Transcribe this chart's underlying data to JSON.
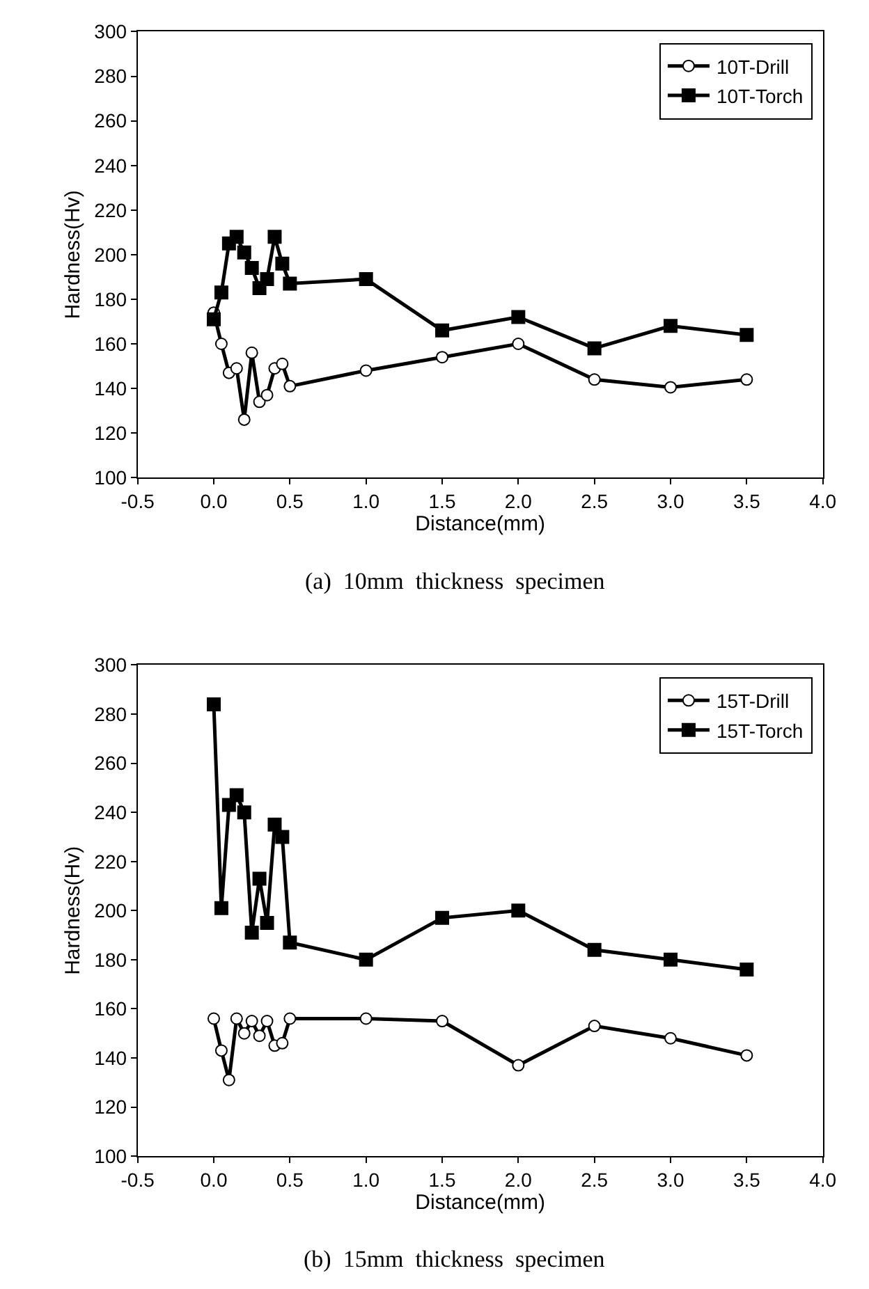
{
  "chart_data": [
    {
      "type": "line",
      "xlabel": "Distance(mm)",
      "ylabel": "Hardness(Hv)",
      "annotations": [
        "(a)  10mm  thickness  specimen"
      ],
      "xlim": [
        -0.5,
        4.0
      ],
      "xticks": [
        {
          "value": -0.5,
          "label": "-0.5"
        },
        {
          "value": 0,
          "label": "0.0"
        },
        0.5,
        {
          "value": 1,
          "label": "1.0"
        },
        1.5,
        {
          "value": 2,
          "label": "2.0"
        },
        2.5,
        {
          "value": 3,
          "label": "3.0"
        },
        3.5,
        {
          "value": 4,
          "label": "4.0"
        }
      ],
      "ylim": [
        100,
        300
      ],
      "yticks": [
        100,
        120,
        140,
        160,
        180,
        200,
        220,
        240,
        260,
        280,
        300
      ],
      "legend": "top right",
      "line_style": "solid",
      "x": [
        0,
        0.05,
        0.1,
        0.15,
        0.2,
        0.25,
        0.3,
        0.35,
        0.4,
        0.45,
        0.5,
        1.0,
        1.5,
        2.0,
        2.5,
        3.0,
        3.5
      ],
      "series": [
        {
          "name": "10T-Drill",
          "color": "#000000",
          "marker": "circle",
          "values": [
            174,
            160,
            147,
            149,
            126,
            156,
            134,
            137,
            149,
            151,
            141,
            148,
            154,
            160,
            144,
            140.5,
            144
          ]
        },
        {
          "name": "10T-Torch",
          "color": "#000000",
          "marker": "square",
          "values": [
            171,
            183,
            205,
            208,
            201,
            194,
            185,
            189,
            208,
            196,
            187,
            189,
            166,
            172,
            158,
            168,
            164
          ]
        }
      ]
    },
    {
      "type": "line",
      "xlabel": "Distance(mm)",
      "ylabel": "Hardness(Hv)",
      "annotations": [
        "(b)  15mm  thickness  specimen"
      ],
      "xlim": [
        -0.5,
        4.0
      ],
      "xticks": [
        {
          "value": -0.5,
          "label": "-0.5"
        },
        {
          "value": 0,
          "label": "0.0"
        },
        0.5,
        {
          "value": 1,
          "label": "1.0"
        },
        1.5,
        {
          "value": 2,
          "label": "2.0"
        },
        2.5,
        {
          "value": 3,
          "label": "3.0"
        },
        3.5,
        {
          "value": 4,
          "label": "4.0"
        }
      ],
      "ylim": [
        100,
        300
      ],
      "yticks": [
        100,
        120,
        140,
        160,
        180,
        200,
        220,
        240,
        260,
        280,
        300
      ],
      "legend": "top right",
      "line_style": "solid",
      "x": [
        0,
        0.05,
        0.1,
        0.15,
        0.2,
        0.25,
        0.3,
        0.35,
        0.4,
        0.45,
        0.5,
        1.0,
        1.5,
        2.0,
        2.5,
        3.0,
        3.5
      ],
      "series": [
        {
          "name": "15T-Drill",
          "color": "#000000",
          "marker": "circle",
          "values": [
            156,
            143,
            131,
            156,
            150,
            155,
            149,
            155,
            145,
            146,
            156,
            156,
            155,
            137,
            153,
            148,
            141
          ]
        },
        {
          "name": "15T-Torch",
          "color": "#000000",
          "marker": "square",
          "values": [
            284,
            201,
            243,
            247,
            240,
            191,
            213,
            195,
            235,
            230,
            187,
            180,
            197,
            200,
            184,
            180,
            176
          ]
        }
      ]
    }
  ]
}
